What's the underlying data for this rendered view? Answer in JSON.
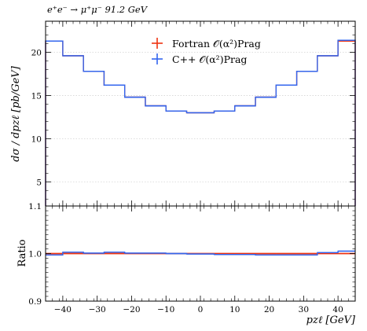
{
  "chart_data": [
    {
      "type": "line",
      "title": "e⁺e⁻ → μ⁺μ⁻ 91.2 GeV",
      "ylabel": "dσ / dpzℓ [pb/GeV]",
      "xlim": [
        -45,
        45
      ],
      "ylim": [
        2.2,
        23.6
      ],
      "yticks": [
        5,
        10,
        15,
        20
      ],
      "legend_position": "top-center",
      "step": true,
      "edges": [
        -45,
        -40,
        -34,
        -28,
        -22,
        -16,
        -10,
        -4,
        4,
        10,
        16,
        22,
        28,
        34,
        40,
        45
      ],
      "series": [
        {
          "name": "Fortran 𝒪(α²)Prag",
          "color": "#ee3311",
          "values": [
            21.3,
            19.6,
            17.8,
            16.2,
            14.8,
            13.8,
            13.2,
            13.0,
            13.2,
            13.8,
            14.8,
            16.2,
            17.8,
            19.6,
            21.3
          ]
        },
        {
          "name": "C++ 𝒪(α²)Prag",
          "color": "#3366ee",
          "values": [
            21.3,
            19.6,
            17.8,
            16.2,
            14.8,
            13.8,
            13.2,
            13.0,
            13.2,
            13.8,
            14.8,
            16.2,
            17.8,
            19.6,
            21.4
          ]
        }
      ]
    },
    {
      "type": "line",
      "xlabel": "pzℓ [GeV]",
      "ylabel": "Ratio",
      "xlim": [
        -45,
        45
      ],
      "ylim": [
        0.9,
        1.1
      ],
      "yticks": [
        0.9,
        1.0,
        1.1
      ],
      "yticklabels": [
        "0.9",
        "1.0",
        "1.1"
      ],
      "xticks": [
        -40,
        -30,
        -20,
        -10,
        0,
        10,
        20,
        30,
        40
      ],
      "xticklabels": [
        "−40",
        "−30",
        "−20",
        "−10",
        "0",
        "10",
        "20",
        "30",
        "40"
      ],
      "step": true,
      "edges": [
        -45,
        -40,
        -34,
        -28,
        -22,
        -16,
        -10,
        -4,
        4,
        10,
        16,
        22,
        28,
        34,
        40,
        45
      ],
      "series": [
        {
          "color": "#ee3311",
          "values": [
            1.0,
            1.0,
            1.0,
            1.0,
            1.0,
            1.0,
            1.0,
            1.0,
            1.0,
            1.0,
            1.0,
            1.0,
            1.0,
            1.0,
            1.0
          ]
        },
        {
          "color": "#3366ee",
          "values": [
            0.997,
            1.003,
            1.001,
            1.003,
            1.001,
            1.001,
            1.0,
            0.999,
            0.998,
            0.998,
            0.997,
            0.997,
            0.997,
            1.002,
            1.005
          ]
        }
      ]
    }
  ]
}
